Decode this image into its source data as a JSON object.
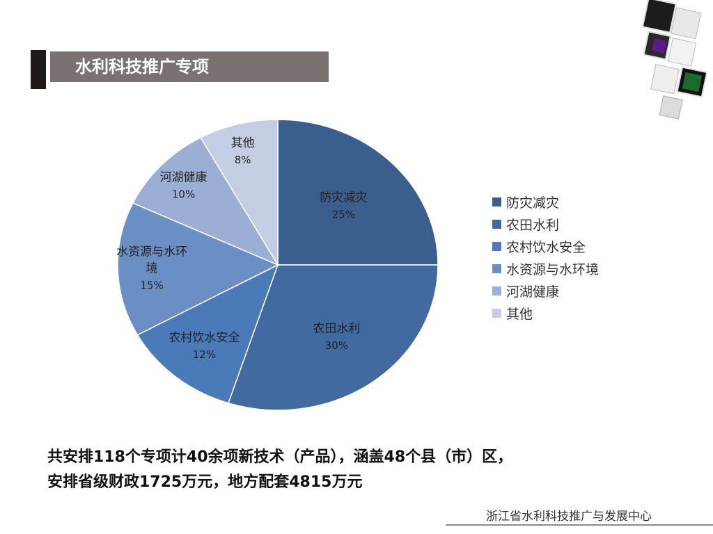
{
  "slide": {
    "title": "水利科技推广专项",
    "summary_line1": "共安排118个专项计40余项新技术（产品），涵盖48个县（市）区，",
    "summary_line2": "安排省级财政1725万元，地方配套4815万元",
    "footer": "浙江省水利科技推广与发展中心"
  },
  "chart_data": {
    "type": "pie",
    "title": "",
    "start_angle_deg": 0,
    "direction": "clockwise",
    "legend_position": "right",
    "slices": [
      {
        "label": "防灾减灾",
        "value": 25,
        "display": "25%",
        "color": "#3a5e8e"
      },
      {
        "label": "农田水利",
        "value": 30,
        "display": "30%",
        "color": "#406aa0"
      },
      {
        "label": "农村饮水安全",
        "value": 12,
        "display": "12%",
        "color": "#4a7ab8"
      },
      {
        "label": "水资源与水环境",
        "value": 15,
        "display": "15%",
        "color": "#6b8ec4"
      },
      {
        "label": "河湖健康",
        "value": 10,
        "display": "10%",
        "color": "#9aafd3"
      },
      {
        "label": "其他",
        "value": 8,
        "display": "8%",
        "color": "#c3cde3"
      }
    ]
  }
}
